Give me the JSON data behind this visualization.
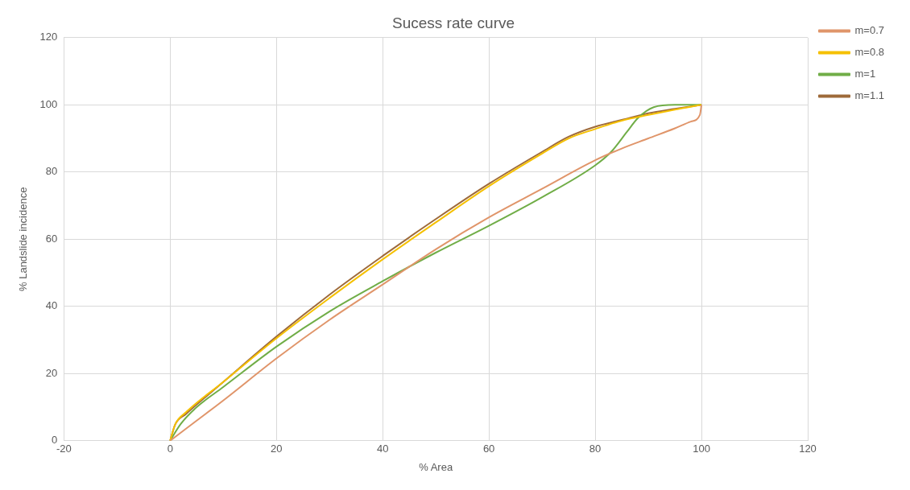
{
  "chart_data": {
    "type": "line",
    "title": "Sucess rate curve",
    "xlabel": "% Area",
    "ylabel": "% Landslide incidence",
    "xlim": [
      -20,
      120
    ],
    "xticks": [
      -20,
      0,
      20,
      40,
      60,
      80,
      100,
      120
    ],
    "ylim": [
      0,
      120
    ],
    "yticks": [
      0,
      20,
      40,
      60,
      80,
      100,
      120
    ],
    "grid": true,
    "legend": "right",
    "marker": "none",
    "line_style": "solid",
    "series": [
      {
        "name": "m=0.7",
        "color": "#e0956a",
        "x": [
          0,
          5,
          10,
          20,
          30,
          40,
          50,
          60,
          70,
          80,
          85,
          90,
          95,
          98,
          99.7,
          100
        ],
        "values": [
          0,
          6,
          12,
          24.5,
          36,
          46.5,
          57,
          66.5,
          75,
          83.5,
          87,
          90,
          93,
          95,
          97,
          100
        ]
      },
      {
        "name": "m=0.8",
        "color": "#f5c000",
        "x": [
          0,
          1,
          3,
          10,
          20,
          30,
          40,
          50,
          60,
          70,
          75,
          80,
          85,
          90,
          95,
          100
        ],
        "values": [
          0,
          5,
          8.5,
          17.5,
          30.5,
          42.5,
          54,
          65,
          75.8,
          85.5,
          90,
          92.8,
          95.3,
          97,
          98.6,
          100
        ]
      },
      {
        "name": "m=1",
        "color": "#70ad47",
        "x": [
          0,
          2,
          5,
          10,
          20,
          30,
          40,
          50,
          60,
          70,
          80,
          83,
          86,
          88,
          91,
          95,
          100
        ],
        "values": [
          0,
          5,
          10,
          16,
          28,
          38.5,
          47.5,
          56,
          64,
          72.5,
          82,
          86,
          92,
          96,
          99.3,
          100,
          100
        ]
      },
      {
        "name": "m=1.1",
        "color": "#9e6a3a",
        "x": [
          0,
          1,
          3,
          10,
          20,
          30,
          40,
          50,
          60,
          70,
          75,
          80,
          85,
          90,
          95,
          100
        ],
        "values": [
          0,
          5,
          8,
          17.5,
          31,
          43.5,
          55,
          66,
          76.5,
          86,
          90.5,
          93.5,
          95.5,
          97.5,
          98.8,
          100
        ]
      }
    ]
  }
}
